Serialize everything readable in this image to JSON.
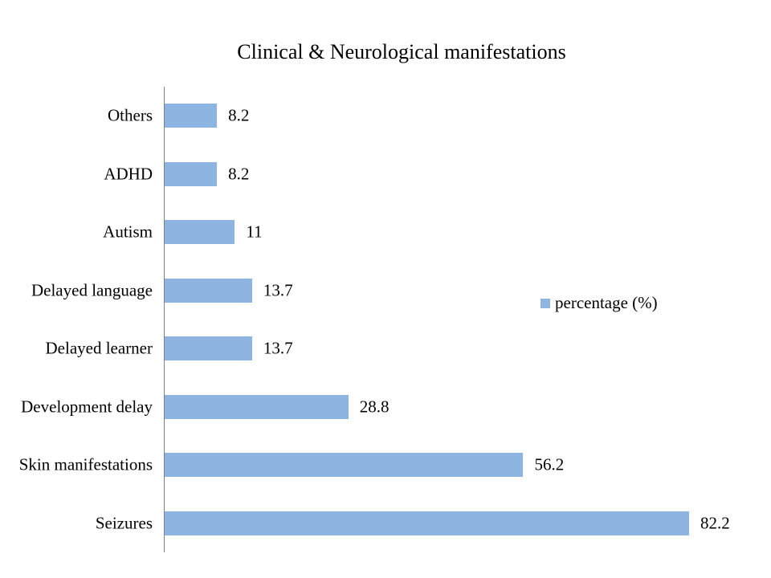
{
  "title": "Clinical & Neurological manifestations",
  "legend": {
    "label": "percentage (%)"
  },
  "colors": {
    "bar_fill": "#8EB4E2",
    "axis_line": "#7F7F7F",
    "text": "#000000",
    "background": "#FFFFFF"
  },
  "chart_data": {
    "type": "bar",
    "orientation": "horizontal",
    "title": "Clinical & Neurological manifestations",
    "categories": [
      "Others",
      "ADHD",
      "Autism",
      "Delayed language",
      "Delayed learner",
      "Development delay",
      "Skin manifestations",
      "Seizures"
    ],
    "values": [
      8.2,
      8.2,
      11,
      13.7,
      13.7,
      28.8,
      56.2,
      82.2
    ],
    "value_labels": [
      "8.2",
      "8.2",
      "11",
      "13.7",
      "13.7",
      "28.8",
      "56.2",
      "82.2"
    ],
    "series": [
      {
        "name": "percentage (%)",
        "values": [
          8.2,
          8.2,
          11,
          13.7,
          13.7,
          28.8,
          56.2,
          82.2
        ]
      }
    ],
    "xlabel": "",
    "ylabel": "",
    "xlim": [
      0,
      90
    ],
    "grid": false,
    "data_labels_shown": true,
    "legend_position": "right",
    "bar_color": "#8EB4E2",
    "axis_line_color": "#7F7F7F"
  }
}
